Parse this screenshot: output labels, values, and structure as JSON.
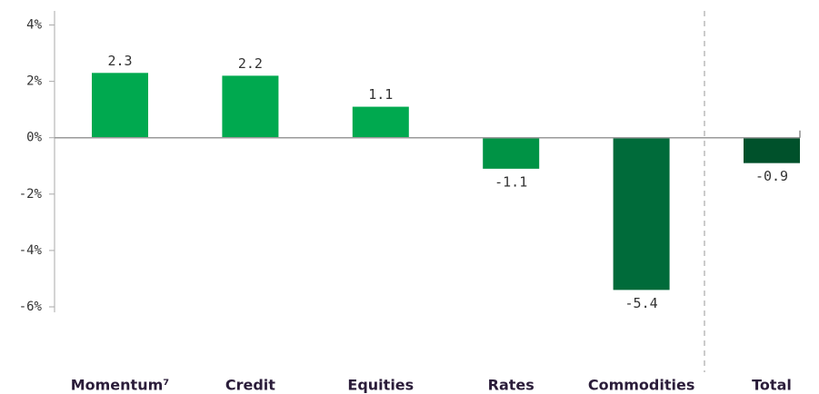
{
  "chart_data": {
    "type": "bar",
    "categories": [
      "Momentum⁷",
      "Credit",
      "Equities",
      "Rates",
      "Commodities",
      "Total"
    ],
    "values": [
      2.3,
      2.2,
      1.1,
      -1.1,
      -5.4,
      -0.9
    ],
    "colors": [
      "#00a94f",
      "#00a94f",
      "#00a94f",
      "#009345",
      "#006b3a",
      "#00512b"
    ],
    "ylim": [
      -6,
      4.5
    ],
    "yticks": [
      {
        "value": 4,
        "label": "4%"
      },
      {
        "value": 2,
        "label": "2%"
      },
      {
        "value": 0,
        "label": "0%"
      },
      {
        "value": -2,
        "label": "-2%"
      },
      {
        "value": -4,
        "label": "-4%"
      },
      {
        "value": -6,
        "label": "-6%"
      }
    ],
    "grid": false
  }
}
